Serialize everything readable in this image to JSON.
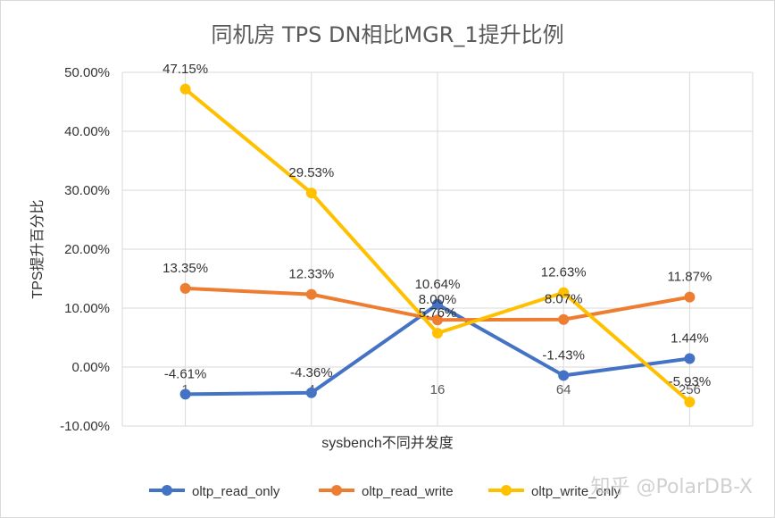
{
  "chart_data": {
    "type": "line",
    "title": "同机房 TPS DN相比MGR_1提升比例",
    "xlabel": "sysbench不同并发度",
    "ylabel": "TPS提升百分比",
    "categories": [
      "1",
      "4",
      "16",
      "64",
      "256"
    ],
    "ylim": [
      -10,
      50
    ],
    "yticks": [
      "-10.00%",
      "0.00%",
      "10.00%",
      "20.00%",
      "30.00%",
      "40.00%",
      "50.00%"
    ],
    "grid": true,
    "legend": "bottom",
    "series": [
      {
        "name": "oltp_read_only",
        "color": "#4472c4",
        "values": [
          -4.61,
          -4.36,
          10.64,
          -1.43,
          1.44
        ],
        "labels": [
          "-4.61%",
          "-4.36%",
          "10.64%",
          "-1.43%",
          "1.44%"
        ]
      },
      {
        "name": "oltp_read_write",
        "color": "#ed7d31",
        "values": [
          13.35,
          12.33,
          8.0,
          8.07,
          11.87
        ],
        "labels": [
          "13.35%",
          "12.33%",
          "8.00%",
          "8.07%",
          "11.87%"
        ]
      },
      {
        "name": "oltp_write_only",
        "color": "#ffc000",
        "values": [
          47.15,
          29.53,
          5.76,
          12.63,
          -5.93
        ],
        "labels": [
          "47.15%",
          "29.53%",
          "5.76%",
          "12.63%",
          "-5.93%"
        ]
      }
    ]
  },
  "watermark": "知乎 @PolarDB-X"
}
